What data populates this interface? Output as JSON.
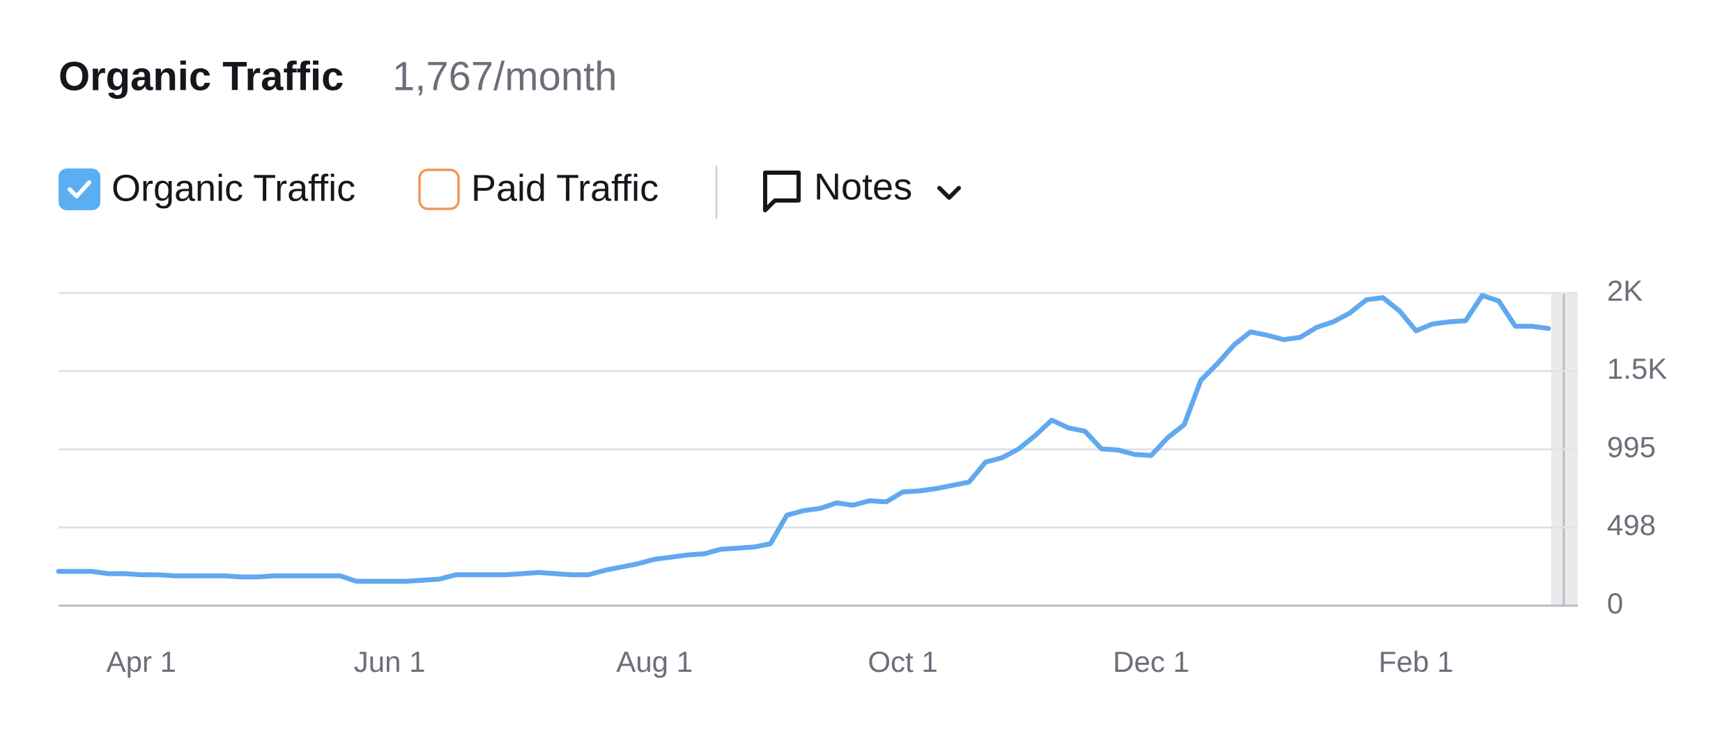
{
  "header": {
    "title": "Organic Traffic",
    "value": "1,767/month"
  },
  "toggles": [
    {
      "label": "Paid Traffic",
      "checked": false
    }
  ],
  "notes": {
    "label": "Notes"
  },
  "chart_data": {
    "type": "line",
    "categories": [
      null,
      null,
      null,
      null,
      null,
      "Apr 1",
      null,
      null,
      null,
      null,
      null,
      null,
      null,
      null,
      null,
      null,
      null,
      null,
      null,
      null,
      "Jun 1",
      null,
      null,
      null,
      null,
      null,
      null,
      null,
      null,
      null,
      null,
      null,
      null,
      null,
      null,
      null,
      "Aug 1",
      null,
      null,
      null,
      null,
      null,
      null,
      null,
      null,
      null,
      null,
      null,
      null,
      null,
      null,
      "Oct 1",
      null,
      null,
      null,
      null,
      null,
      null,
      null,
      null,
      null,
      null,
      null,
      null,
      null,
      null,
      "Dec 1",
      null,
      null,
      null,
      null,
      null,
      null,
      null,
      null,
      null,
      null,
      null,
      null,
      null,
      null,
      null,
      "Feb 1",
      null,
      null,
      null,
      null,
      null,
      null,
      null,
      null
    ],
    "series": [
      {
        "name": "Organic Traffic",
        "color": "#62a8ee",
        "values": [
          218,
          218,
          218,
          204,
          204,
          197,
          197,
          190,
          190,
          190,
          190,
          183,
          183,
          190,
          190,
          190,
          190,
          190,
          155,
          155,
          155,
          155,
          162,
          169,
          197,
          197,
          197,
          197,
          204,
          211,
          204,
          197,
          197,
          225,
          246,
          267,
          295,
          309,
          323,
          330,
          359,
          366,
          373,
          394,
          576,
          605,
          619,
          654,
          640,
          668,
          661,
          724,
          731,
          745,
          766,
          787,
          914,
          942,
          998,
          1083,
          1181,
          1132,
          1111,
          998,
          991,
          963,
          956,
          1069,
          1153,
          1434,
          1540,
          1659,
          1743,
          1722,
          1694,
          1708,
          1772,
          1807,
          1863,
          1947,
          1961,
          1877,
          1750,
          1793,
          1807,
          1814,
          1975,
          1940,
          1779,
          1779,
          1765
        ]
      }
    ],
    "ylim": [
      0,
      1990
    ],
    "yticks": [
      0,
      498,
      995,
      {
        "value": 1493,
        "label": "1.5K"
      },
      {
        "value": 1990,
        "label": "2K"
      }
    ],
    "grid": true
  }
}
